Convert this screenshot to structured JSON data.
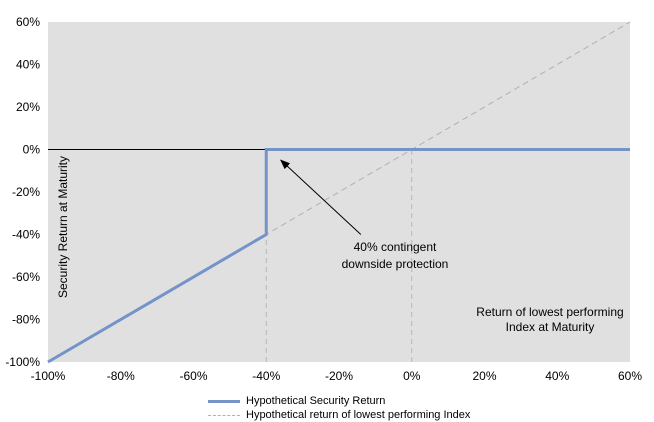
{
  "chart_data": {
    "type": "line",
    "xlim": [
      -100,
      60
    ],
    "ylim": [
      -100,
      60
    ],
    "x_ticks": [
      -100,
      -80,
      -60,
      -40,
      -20,
      0,
      20,
      40,
      60
    ],
    "y_ticks": [
      -100,
      -80,
      -60,
      -40,
      -20,
      0,
      20,
      40,
      60
    ],
    "x_tick_labels": [
      "-100%",
      "-80%",
      "-60%",
      "-40%",
      "-20%",
      "0%",
      "20%",
      "40%",
      "60%"
    ],
    "y_tick_labels": [
      "-100%",
      "-80%",
      "-60%",
      "-40%",
      "-20%",
      "0%",
      "20%",
      "40%",
      "60%"
    ],
    "ylabel": "Security Return at Maturity",
    "xlabel_lines": [
      "Return of lowest performing",
      "Index  at Maturity"
    ],
    "annotation_lines": [
      "40% contingent",
      "downside protection"
    ],
    "annotation_arrow_target": [
      -36,
      -5
    ],
    "annotation_arrow_origin": [
      -14,
      -40
    ],
    "reference_lines": [
      {
        "x": [
          -100,
          60
        ],
        "y": [
          0,
          0
        ],
        "style": "solid"
      },
      {
        "x": [
          -40,
          -40
        ],
        "y": [
          -100,
          -40
        ],
        "style": "dashed"
      },
      {
        "x": [
          0,
          0
        ],
        "y": [
          -100,
          0
        ],
        "style": "dashed"
      }
    ],
    "series": [
      {
        "name": "Hypothetical Security Return",
        "style": "solid",
        "color": "#7493c9",
        "x": [
          -100,
          -40,
          -40,
          60
        ],
        "y": [
          -100,
          -40,
          0,
          0
        ]
      },
      {
        "name": "Hypothetical return of lowest performing Index",
        "style": "dashed",
        "color": "#b0b0b0",
        "x": [
          -100,
          60
        ],
        "y": [
          -100,
          60
        ]
      }
    ],
    "plot_background": "#e0e0e0",
    "grid": false,
    "legend_position": "bottom"
  }
}
